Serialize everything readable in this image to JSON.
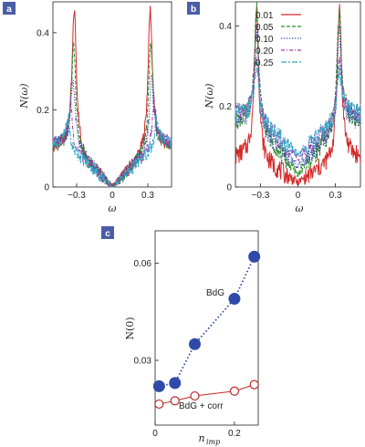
{
  "panels": {
    "a": {
      "label": "a"
    },
    "b": {
      "label": "b"
    },
    "c": {
      "label": "c"
    }
  },
  "colors": {
    "panel_label_bg": "#4a5ea8",
    "s001": "#d42a2a",
    "s005": "#2a8a2a",
    "s010": "#2f3fb0",
    "s020": "#9a40a0",
    "s025": "#30a8c8",
    "bdg": "#2f4aa8",
    "corr": "#c02828"
  },
  "chart_data": [
    {
      "type": "line",
      "panel": "a",
      "xlabel": "ω",
      "ylabel": "N(ω)",
      "xlim": [
        -0.5,
        0.5
      ],
      "ylim": [
        0,
        0.48
      ],
      "xticks": [
        "−0.3",
        "0",
        "0.3"
      ],
      "xtick_values": [
        -0.3,
        0,
        0.3
      ],
      "yticks": [
        "0",
        "0.2",
        "0.4"
      ],
      "ytick_values": [
        0,
        0.2,
        0.4
      ],
      "series": [
        {
          "key": "s001",
          "style": "solid",
          "peak_x": 0.32,
          "peak_y": 0.46,
          "edge_y": 0.11,
          "zero_y": 0.0
        },
        {
          "key": "s005",
          "style": "dashed",
          "peak_x": 0.325,
          "peak_y": 0.37,
          "edge_y": 0.11,
          "zero_y": 0.0
        },
        {
          "key": "s010",
          "style": "dotted",
          "peak_x": 0.33,
          "peak_y": 0.28,
          "edge_y": 0.12,
          "zero_y": 0.0
        },
        {
          "key": "s020",
          "style": "dotdash",
          "peak_x": 0.35,
          "peak_y": 0.22,
          "edge_y": 0.12,
          "zero_y": 0.0
        },
        {
          "key": "s025",
          "style": "longdash",
          "peak_x": 0.37,
          "peak_y": 0.18,
          "edge_y": 0.12,
          "zero_y": 0.0
        }
      ]
    },
    {
      "type": "line",
      "panel": "b",
      "xlabel": "ω",
      "ylabel": "N(ω)",
      "xlim": [
        -0.5,
        0.5
      ],
      "ylim": [
        0,
        0.46
      ],
      "xticks": [
        "−0.3",
        "0",
        "0.3"
      ],
      "xtick_values": [
        -0.3,
        0,
        0.3
      ],
      "yticks": [
        "0",
        "0.2",
        "0.4"
      ],
      "ytick_values": [
        0,
        0.2,
        0.4
      ],
      "legend": [
        "0.01",
        "0.05",
        "0.10",
        "0.20",
        "0.25"
      ],
      "series": [
        {
          "key": "s001",
          "name": "0.01",
          "style": "solid",
          "peak_x": 0.33,
          "peak_y": 0.45,
          "edge_y": 0.08,
          "zero_y": 0.01
        },
        {
          "key": "s005",
          "name": "0.05",
          "style": "dashed",
          "peak_x": 0.33,
          "peak_y": 0.44,
          "edge_y": 0.17,
          "zero_y": 0.03
        },
        {
          "key": "s010",
          "name": "0.10",
          "style": "dotted",
          "peak_x": 0.33,
          "peak_y": 0.39,
          "edge_y": 0.17,
          "zero_y": 0.05
        },
        {
          "key": "s020",
          "name": "0.20",
          "style": "dotdash",
          "peak_x": 0.33,
          "peak_y": 0.32,
          "edge_y": 0.19,
          "zero_y": 0.07
        },
        {
          "key": "s025",
          "name": "0.25",
          "style": "longdash",
          "peak_x": 0.33,
          "peak_y": 0.29,
          "edge_y": 0.19,
          "zero_y": 0.08
        }
      ]
    },
    {
      "type": "scatter",
      "panel": "c",
      "xlabel": "n_imp",
      "ylabel": "N(0)",
      "xlim": [
        0,
        0.26
      ],
      "ylim": [
        0.01,
        0.07
      ],
      "xticks": [
        "0",
        "0.2"
      ],
      "xtick_values": [
        0,
        0.2
      ],
      "yticks": [
        "0.03",
        "0.06"
      ],
      "ytick_values": [
        0.03,
        0.06
      ],
      "annotations": [
        "BdG",
        "BdG + corr"
      ],
      "series": [
        {
          "name": "BdG",
          "key": "bdg",
          "marker": "filled",
          "line": "dotted",
          "x": [
            0.01,
            0.05,
            0.1,
            0.2,
            0.25
          ],
          "y": [
            0.022,
            0.023,
            0.035,
            0.049,
            0.062
          ]
        },
        {
          "name": "BdG + corr",
          "key": "corr",
          "marker": "open",
          "line": "solid",
          "x": [
            0.01,
            0.05,
            0.1,
            0.2,
            0.25
          ],
          "y": [
            0.0165,
            0.0175,
            0.019,
            0.0205,
            0.0225
          ]
        }
      ]
    }
  ]
}
